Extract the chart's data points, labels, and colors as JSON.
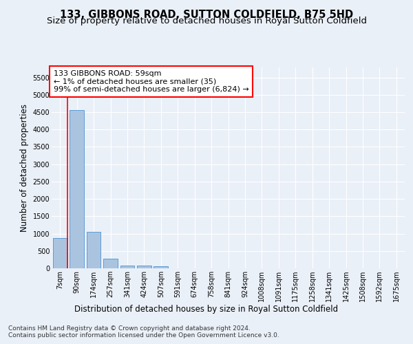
{
  "title": "133, GIBBONS ROAD, SUTTON COLDFIELD, B75 5HD",
  "subtitle": "Size of property relative to detached houses in Royal Sutton Coldfield",
  "xlabel": "Distribution of detached houses by size in Royal Sutton Coldfield",
  "ylabel": "Number of detached properties",
  "footnote1": "Contains HM Land Registry data © Crown copyright and database right 2024.",
  "footnote2": "Contains public sector information licensed under the Open Government Licence v3.0.",
  "bar_labels": [
    "7sqm",
    "90sqm",
    "174sqm",
    "257sqm",
    "341sqm",
    "424sqm",
    "507sqm",
    "591sqm",
    "674sqm",
    "758sqm",
    "841sqm",
    "924sqm",
    "1008sqm",
    "1091sqm",
    "1175sqm",
    "1258sqm",
    "1341sqm",
    "1425sqm",
    "1508sqm",
    "1592sqm",
    "1675sqm"
  ],
  "bar_values": [
    875,
    4560,
    1055,
    280,
    80,
    80,
    55,
    0,
    0,
    0,
    0,
    0,
    0,
    0,
    0,
    0,
    0,
    0,
    0,
    0,
    0
  ],
  "bar_color": "#aac4e0",
  "bar_edge_color": "#5b9bd5",
  "annotation_line": "133 GIBBONS ROAD: 59sqm",
  "annotation_line2": "← 1% of detached houses are smaller (35)",
  "annotation_line3": "99% of semi-detached houses are larger (6,824) →",
  "ylim": [
    0,
    5800
  ],
  "yticks": [
    0,
    500,
    1000,
    1500,
    2000,
    2500,
    3000,
    3500,
    4000,
    4500,
    5000,
    5500
  ],
  "background_color": "#eaf0f8",
  "plot_bg_color": "#eaf0f8",
  "grid_color": "#ffffff",
  "title_fontsize": 10.5,
  "subtitle_fontsize": 9.5,
  "annot_fontsize": 8,
  "tick_fontsize": 7,
  "ylabel_fontsize": 8.5,
  "xlabel_fontsize": 8.5,
  "footnote_fontsize": 6.5
}
